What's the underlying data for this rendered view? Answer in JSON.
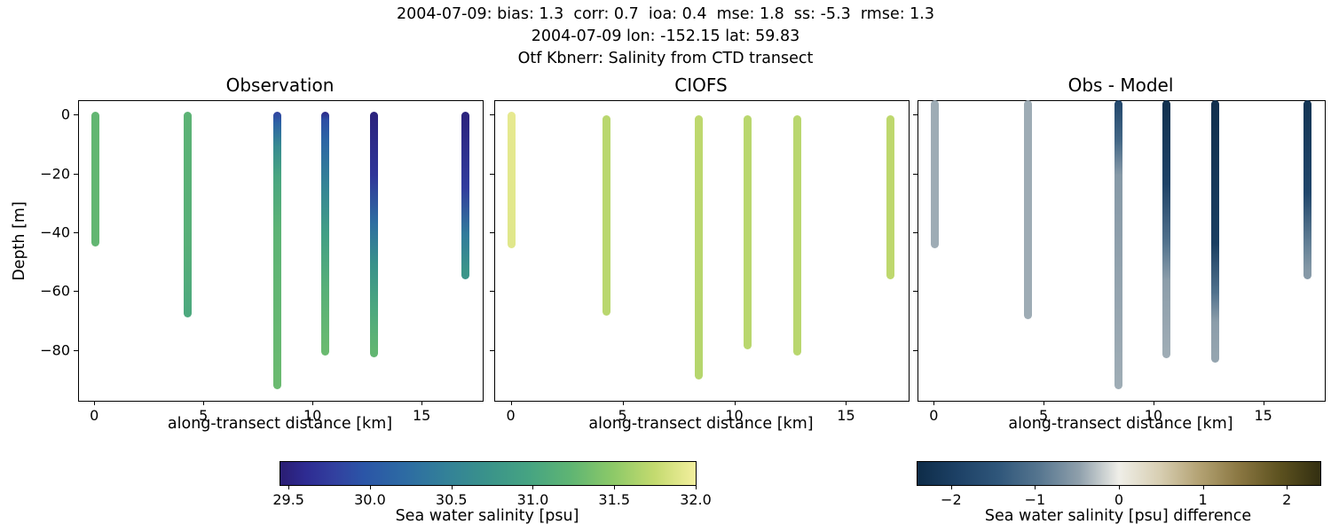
{
  "header": {
    "line1": "2004-07-09: bias: 1.3  corr: 0.7  ioa: 0.4  mse: 1.8  ss: -5.3  rmse: 1.3",
    "line2": "2004-07-09 lon: -152.15 lat: 59.83",
    "line3": "Otf Kbnerr: Salinity from CTD transect"
  },
  "colormaps": {
    "haline": {
      "range": [
        29.45,
        32.0
      ],
      "stops": [
        [
          0,
          "#2a1d72"
        ],
        [
          0.06,
          "#2e2b92"
        ],
        [
          0.13,
          "#32409f"
        ],
        [
          0.2,
          "#2b55a7"
        ],
        [
          0.3,
          "#2d6ba3"
        ],
        [
          0.4,
          "#338198"
        ],
        [
          0.5,
          "#3a938a"
        ],
        [
          0.6,
          "#46a482"
        ],
        [
          0.7,
          "#5fb573"
        ],
        [
          0.8,
          "#8cc968"
        ],
        [
          0.9,
          "#c3da6f"
        ],
        [
          1,
          "#f3ef9d"
        ]
      ]
    },
    "diff": {
      "range": [
        -2.4,
        2.4
      ],
      "stops": [
        [
          0,
          "#0e2c48"
        ],
        [
          0.1,
          "#1d4166"
        ],
        [
          0.2,
          "#2f567a"
        ],
        [
          0.3,
          "#55758f"
        ],
        [
          0.4,
          "#8e9fab"
        ],
        [
          0.5,
          "#efeee8"
        ],
        [
          0.6,
          "#d8cfb3"
        ],
        [
          0.7,
          "#b3a273"
        ],
        [
          0.8,
          "#897641"
        ],
        [
          0.9,
          "#5c511f"
        ],
        [
          1,
          "#332f11"
        ]
      ]
    }
  },
  "chart_data": [
    {
      "type": "scatter",
      "title": "Observation",
      "xlabel": "along-transect distance [km]",
      "ylabel": "Depth [m]",
      "cmap": "haline",
      "value_name": "sea water salinity [psu]",
      "xlim": [
        -0.7,
        17.8
      ],
      "ylim": [
        -97.2,
        4.6
      ],
      "xticks": [
        [
          0,
          "0"
        ],
        [
          5,
          "5"
        ],
        [
          10,
          "10"
        ],
        [
          15,
          "15"
        ]
      ],
      "yticks": [
        [
          0,
          "0"
        ],
        [
          -20,
          "−20"
        ],
        [
          -40,
          "−40"
        ],
        [
          -60,
          "−60"
        ],
        [
          -80,
          "−80"
        ]
      ],
      "ytick_labels": true,
      "casts": [
        {
          "x": 0.05,
          "profile": [
            [
              -0.3,
              31.25
            ],
            [
              -43.5,
              31.25
            ]
          ]
        },
        {
          "x": 4.3,
          "profile": [
            [
              -0.3,
              31.2
            ],
            [
              -45,
              31.15
            ],
            [
              -67.5,
              31.05
            ]
          ]
        },
        {
          "x": 8.4,
          "profile": [
            [
              -0.3,
              29.8
            ],
            [
              -4,
              30.1
            ],
            [
              -12,
              30.6
            ],
            [
              -22,
              31.0
            ],
            [
              -40,
              31.2
            ],
            [
              -92,
              31.3
            ]
          ]
        },
        {
          "x": 10.6,
          "profile": [
            [
              -0.3,
              29.55
            ],
            [
              -3,
              29.9
            ],
            [
              -10,
              30.15
            ],
            [
              -25,
              30.5
            ],
            [
              -42,
              30.9
            ],
            [
              -60,
              31.15
            ],
            [
              -80.5,
              31.3
            ]
          ]
        },
        {
          "x": 12.8,
          "profile": [
            [
              -0.3,
              29.5
            ],
            [
              -22,
              29.7
            ],
            [
              -38,
              30.25
            ],
            [
              -52,
              30.7
            ],
            [
              -68,
              31.05
            ],
            [
              -81,
              31.25
            ]
          ]
        },
        {
          "x": 17.0,
          "profile": [
            [
              -0.3,
              29.5
            ],
            [
              -26,
              29.75
            ],
            [
              -42,
              30.4
            ],
            [
              -54.5,
              30.75
            ]
          ]
        }
      ]
    },
    {
      "type": "scatter",
      "title": "CIOFS",
      "xlabel": "along-transect distance [km]",
      "ylabel": "Depth [m]",
      "cmap": "haline",
      "value_name": "sea water salinity [psu]",
      "xlim": [
        -0.7,
        17.8
      ],
      "ylim": [
        -97.2,
        4.6
      ],
      "xticks": [
        [
          0,
          "0"
        ],
        [
          5,
          "5"
        ],
        [
          10,
          "10"
        ],
        [
          15,
          "15"
        ]
      ],
      "yticks": [
        [
          0,
          "0"
        ],
        [
          -20,
          "−20"
        ],
        [
          -40,
          "−40"
        ],
        [
          -60,
          "−60"
        ],
        [
          -80,
          "−80"
        ]
      ],
      "ytick_labels": false,
      "casts": [
        {
          "x": 0.05,
          "profile": [
            [
              -0.5,
              31.93
            ],
            [
              -44,
              31.9
            ]
          ]
        },
        {
          "x": 4.3,
          "profile": [
            [
              -1.5,
              31.7
            ],
            [
              -67,
              31.7
            ]
          ]
        },
        {
          "x": 8.4,
          "profile": [
            [
              -1.5,
              31.72
            ],
            [
              -88.5,
              31.68
            ]
          ]
        },
        {
          "x": 10.6,
          "profile": [
            [
              -1.5,
              31.7
            ],
            [
              -78.5,
              31.7
            ]
          ]
        },
        {
          "x": 12.8,
          "profile": [
            [
              -1.5,
              31.7
            ],
            [
              -80.5,
              31.7
            ]
          ]
        },
        {
          "x": 17.0,
          "profile": [
            [
              -1.5,
              31.72
            ],
            [
              -54.5,
              31.72
            ]
          ]
        }
      ]
    },
    {
      "type": "scatter",
      "title": "Obs - Model",
      "xlabel": "along-transect distance [km]",
      "ylabel": "Depth [m]",
      "cmap": "diff",
      "value_name": "sea water salinity [psu] difference",
      "xlim": [
        -0.7,
        17.8
      ],
      "ylim": [
        -97.2,
        4.6
      ],
      "xticks": [
        [
          0,
          "0"
        ],
        [
          5,
          "5"
        ],
        [
          10,
          "10"
        ],
        [
          15,
          "15"
        ]
      ],
      "yticks": [
        [
          0,
          "0"
        ],
        [
          -20,
          "−20"
        ],
        [
          -40,
          "−40"
        ],
        [
          -60,
          "−60"
        ],
        [
          -80,
          "−80"
        ]
      ],
      "ytick_labels": false,
      "casts": [
        {
          "x": 0.05,
          "profile": [
            [
              3.5,
              -0.4
            ],
            [
              -44,
              -0.4
            ]
          ]
        },
        {
          "x": 4.3,
          "profile": [
            [
              3.5,
              -0.4
            ],
            [
              -68,
              -0.4
            ]
          ]
        },
        {
          "x": 8.4,
          "profile": [
            [
              3.5,
              -1.8
            ],
            [
              -10,
              -1.2
            ],
            [
              -22,
              -0.55
            ],
            [
              -92,
              -0.4
            ]
          ]
        },
        {
          "x": 10.6,
          "profile": [
            [
              3.5,
              -2.3
            ],
            [
              -25,
              -1.9
            ],
            [
              -45,
              -1.0
            ],
            [
              -58,
              -0.5
            ],
            [
              -81.5,
              -0.4
            ]
          ]
        },
        {
          "x": 12.8,
          "profile": [
            [
              3.5,
              -2.3
            ],
            [
              -45,
              -2.0
            ],
            [
              -62,
              -1.0
            ],
            [
              -72,
              -0.5
            ],
            [
              -83,
              -0.45
            ]
          ]
        },
        {
          "x": 17.0,
          "profile": [
            [
              3.5,
              -2.2
            ],
            [
              -28,
              -1.8
            ],
            [
              -45,
              -0.85
            ],
            [
              -54.5,
              -0.55
            ]
          ]
        }
      ]
    }
  ],
  "colorbars": [
    {
      "cmap": "haline",
      "label": "Sea water salinity [psu]",
      "ticks": [
        [
          29.5,
          "29.5"
        ],
        [
          30.0,
          "30.0"
        ],
        [
          30.5,
          "30.5"
        ],
        [
          31.0,
          "31.0"
        ],
        [
          31.5,
          "31.5"
        ],
        [
          32.0,
          "32.0"
        ]
      ]
    },
    {
      "cmap": "diff",
      "label": "Sea water salinity [psu] difference",
      "ticks": [
        [
          -2,
          "−2"
        ],
        [
          -1,
          "−1"
        ],
        [
          0,
          "0"
        ],
        [
          1,
          "1"
        ],
        [
          2,
          "2"
        ]
      ]
    }
  ]
}
